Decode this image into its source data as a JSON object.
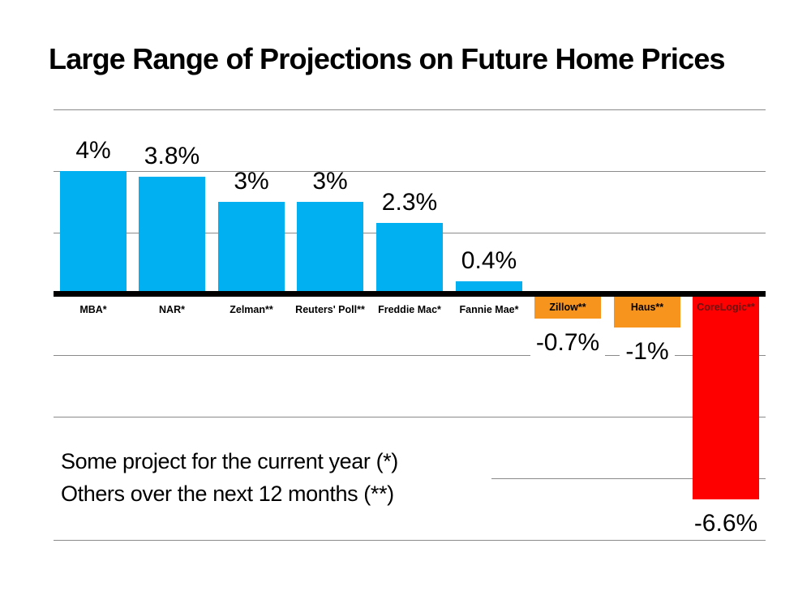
{
  "title": "Large Range of Projections on Future Home Prices",
  "note": {
    "line1": "Some project for the current year (*)",
    "line2": "Others over the next 12 months (**)"
  },
  "colors": {
    "background": "#FFFFFF",
    "positive_bar_blue": "#00B0F0",
    "negative_bar_orange": "#F7941D",
    "negative_bar_red": "#FE0000",
    "corelogic_label_text": "#6E1110",
    "gridline_gray": "#8A8A8A",
    "axis_black": "#000000",
    "text_black": "#000000"
  },
  "chart_data": {
    "type": "bar",
    "title": "Large Range of Projections on Future Home Prices",
    "categories": [
      "MBA*",
      "NAR*",
      "Zelman**",
      "Reuters' Poll**",
      "Freddie Mac*",
      "Fannie Mae*",
      "Zillow**",
      "Haus**",
      "CoreLogic**"
    ],
    "values": [
      4,
      3.8,
      3,
      3,
      2.3,
      0.4,
      -0.7,
      -1,
      -6.6
    ],
    "value_labels": [
      "4%",
      "3.8%",
      "3%",
      "3%",
      "2.3%",
      "0.4%",
      "-0.7%",
      "-1%",
      "-6.6%"
    ],
    "bar_colors": [
      "#00B0F0",
      "#00B0F0",
      "#00B0F0",
      "#00B0F0",
      "#00B0F0",
      "#00B0F0",
      "#F7941D",
      "#F7941D",
      "#FE0000"
    ],
    "category_label_colors": [
      "#000000",
      "#000000",
      "#000000",
      "#000000",
      "#000000",
      "#000000",
      "#000000",
      "#000000",
      "#6E1110"
    ],
    "xlabel": "",
    "ylabel": "",
    "ylim": [
      -8,
      6
    ],
    "gridlines_pct": [
      6,
      4,
      2,
      -2,
      -4,
      -6,
      -8
    ],
    "grid": true,
    "legend": false,
    "annotations": [
      "Some project for the current year (*)",
      "Others over the next 12 months (**)"
    ]
  }
}
